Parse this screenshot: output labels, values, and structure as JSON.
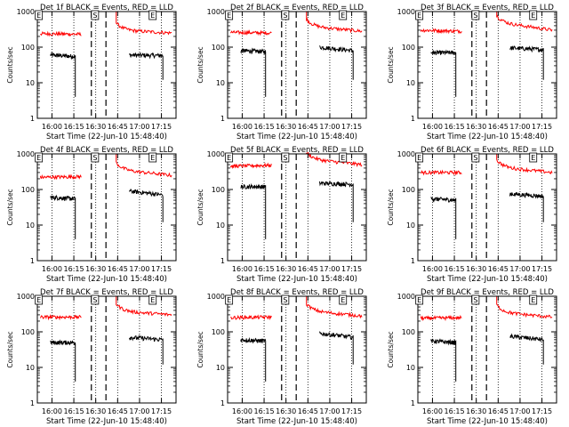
{
  "figure": {
    "ylabel": "Counts/sec",
    "xlabel": "Start Time (22-Jun-10 15:48:40)",
    "x_ticks": [
      "16:00",
      "16:15",
      "16:30",
      "16:45",
      "17:00",
      "17:15"
    ],
    "y_ticks": [
      "1",
      "10",
      "100",
      "1000"
    ],
    "markers": [
      "E",
      "S",
      "E"
    ],
    "series_colors": {
      "events": "#000000",
      "lld": "#ff0000"
    }
  },
  "chart_data": [
    {
      "type": "line",
      "title": "Det 1f BLACK = Events, RED = LLD",
      "x_unit": "minutes after 16:00",
      "ylim": [
        1,
        1000
      ],
      "yscale": "log",
      "series": [
        {
          "name": "BLACK = Events",
          "segments": [
            {
              "x": [
                -1,
                16
              ],
              "y": [
                60,
                55
              ]
            },
            {
              "x": [
                53,
                76
              ],
              "y": [
                60,
                58
              ]
            }
          ]
        },
        {
          "name": "RED = LLD",
          "segments": [
            {
              "x": [
                -8,
                20
              ],
              "y": [
                240,
                230
              ]
            },
            {
              "x": [
                44,
                82
              ],
              "y": [
                300,
                250
              ]
            }
          ]
        }
      ]
    },
    {
      "type": "line",
      "title": "Det 2f BLACK = Events, RED = LLD",
      "x_unit": "minutes after 16:00",
      "ylim": [
        1,
        1000
      ],
      "yscale": "log",
      "series": [
        {
          "name": "BLACK = Events",
          "segments": [
            {
              "x": [
                -1,
                16
              ],
              "y": [
                80,
                75
              ]
            },
            {
              "x": [
                53,
                76
              ],
              "y": [
                100,
                80
              ]
            }
          ]
        },
        {
          "name": "RED = LLD",
          "segments": [
            {
              "x": [
                -8,
                20
              ],
              "y": [
                260,
                250
              ]
            },
            {
              "x": [
                44,
                82
              ],
              "y": [
                380,
                280
              ]
            }
          ]
        }
      ]
    },
    {
      "type": "line",
      "title": "Det 3f BLACK = Events, RED = LLD",
      "x_unit": "minutes after 16:00",
      "ylim": [
        1,
        1000
      ],
      "yscale": "log",
      "series": [
        {
          "name": "BLACK = Events",
          "segments": [
            {
              "x": [
                -1,
                16
              ],
              "y": [
                70,
                70
              ]
            },
            {
              "x": [
                53,
                76
              ],
              "y": [
                95,
                85
              ]
            }
          ]
        },
        {
          "name": "RED = LLD",
          "segments": [
            {
              "x": [
                -8,
                20
              ],
              "y": [
                300,
                280
              ]
            },
            {
              "x": [
                44,
                82
              ],
              "y": [
                480,
                300
              ]
            }
          ]
        }
      ]
    },
    {
      "type": "line",
      "title": "Det 4f BLACK = Events, RED = LLD",
      "x_unit": "minutes after 16:00",
      "ylim": [
        1,
        1000
      ],
      "yscale": "log",
      "series": [
        {
          "name": "BLACK = Events",
          "segments": [
            {
              "x": [
                -1,
                16
              ],
              "y": [
                60,
                55
              ]
            },
            {
              "x": [
                53,
                76
              ],
              "y": [
                90,
                70
              ]
            }
          ]
        },
        {
          "name": "RED = LLD",
          "segments": [
            {
              "x": [
                -8,
                20
              ],
              "y": [
                220,
                230
              ]
            },
            {
              "x": [
                44,
                82
              ],
              "y": [
                350,
                250
              ]
            }
          ]
        }
      ]
    },
    {
      "type": "line",
      "title": "Det 5f BLACK = Events, RED = LLD",
      "x_unit": "minutes after 16:00",
      "ylim": [
        1,
        1000
      ],
      "yscale": "log",
      "series": [
        {
          "name": "BLACK = Events",
          "segments": [
            {
              "x": [
                -1,
                16
              ],
              "y": [
                120,
                120
              ]
            },
            {
              "x": [
                53,
                76
              ],
              "y": [
                150,
                140
              ]
            }
          ]
        },
        {
          "name": "RED = LLD",
          "segments": [
            {
              "x": [
                -8,
                20
              ],
              "y": [
                450,
                480
              ]
            },
            {
              "x": [
                44,
                82
              ],
              "y": [
                700,
                500
              ]
            }
          ]
        }
      ]
    },
    {
      "type": "line",
      "title": "Det 6f BLACK = Events, RED = LLD",
      "x_unit": "minutes after 16:00",
      "ylim": [
        1,
        1000
      ],
      "yscale": "log",
      "series": [
        {
          "name": "BLACK = Events",
          "segments": [
            {
              "x": [
                -1,
                16
              ],
              "y": [
                55,
                50
              ]
            },
            {
              "x": [
                53,
                76
              ],
              "y": [
                75,
                65
              ]
            }
          ]
        },
        {
          "name": "RED = LLD",
          "segments": [
            {
              "x": [
                -8,
                20
              ],
              "y": [
                300,
                300
              ]
            },
            {
              "x": [
                44,
                82
              ],
              "y": [
                420,
                300
              ]
            }
          ]
        }
      ]
    },
    {
      "type": "line",
      "title": "Det 7f BLACK = Events, RED = LLD",
      "x_unit": "minutes after 16:00",
      "ylim": [
        1,
        1000
      ],
      "yscale": "log",
      "series": [
        {
          "name": "BLACK = Events",
          "segments": [
            {
              "x": [
                -1,
                16
              ],
              "y": [
                50,
                50
              ]
            },
            {
              "x": [
                53,
                76
              ],
              "y": [
                70,
                60
              ]
            }
          ]
        },
        {
          "name": "RED = LLD",
          "segments": [
            {
              "x": [
                -8,
                20
              ],
              "y": [
                260,
                260
              ]
            },
            {
              "x": [
                44,
                82
              ],
              "y": [
                380,
                300
              ]
            }
          ]
        }
      ]
    },
    {
      "type": "line",
      "title": "Det 8f BLACK = Events, RED = LLD",
      "x_unit": "minutes after 16:00",
      "ylim": [
        1,
        1000
      ],
      "yscale": "log",
      "series": [
        {
          "name": "BLACK = Events",
          "segments": [
            {
              "x": [
                -1,
                16
              ],
              "y": [
                60,
                55
              ]
            },
            {
              "x": [
                53,
                76
              ],
              "y": [
                90,
                70
              ]
            }
          ]
        },
        {
          "name": "RED = LLD",
          "segments": [
            {
              "x": [
                -8,
                20
              ],
              "y": [
                250,
                260
              ]
            },
            {
              "x": [
                44,
                82
              ],
              "y": [
                380,
                280
              ]
            }
          ]
        }
      ]
    },
    {
      "type": "line",
      "title": "Det 9f BLACK = Events, RED = LLD",
      "x_unit": "minutes after 16:00",
      "ylim": [
        1,
        1000
      ],
      "yscale": "log",
      "series": [
        {
          "name": "BLACK = Events",
          "segments": [
            {
              "x": [
                -1,
                16
              ],
              "y": [
                55,
                50
              ]
            },
            {
              "x": [
                53,
                76
              ],
              "y": [
                75,
                60
              ]
            }
          ]
        },
        {
          "name": "RED = LLD",
          "segments": [
            {
              "x": [
                -8,
                20
              ],
              "y": [
                240,
                250
              ]
            },
            {
              "x": [
                44,
                82
              ],
              "y": [
                350,
                260
              ]
            }
          ]
        }
      ]
    }
  ]
}
